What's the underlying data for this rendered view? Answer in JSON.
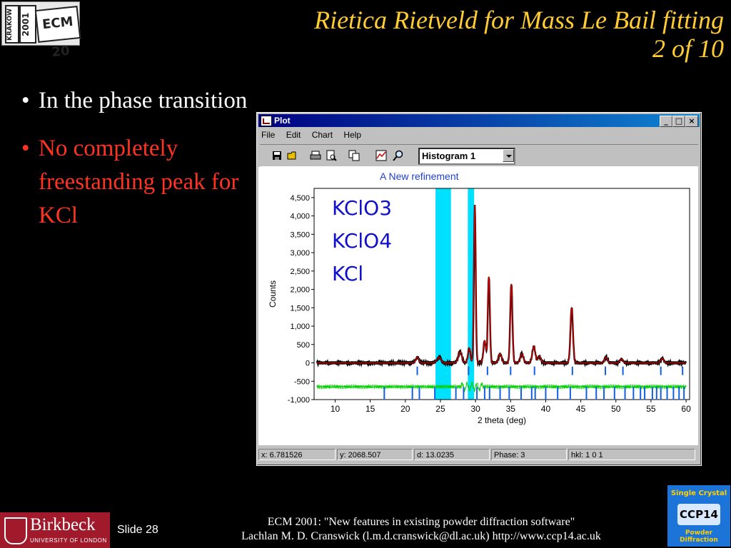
{
  "slide": {
    "title_line1": "Rietica Rietveld for Mass Le Bail fitting",
    "title_line2": "2 of 10",
    "bullet_symbol": "•",
    "bullets": [
      {
        "text": "In the phase transition",
        "color": "#ffffff"
      },
      {
        "text": "No completely freestanding peak for KCl",
        "color": "#ff3322"
      }
    ],
    "slide_number": "Slide 28",
    "credit_line1": "ECM 2001: \"New features in existing powder diffraction software\"",
    "credit_line2": "Lachlan M. D. Cranswick (l.m.d.cranswick@dl.ac.uk) http://www.ccp14.ac.uk",
    "title_color": "#ffcc33"
  },
  "logos": {
    "krakow_text": "KRAKÓW",
    "year_text": "2001",
    "ecm_text": "ECM 20",
    "birkbeck_name": "Birkbeck",
    "birkbeck_sub": "UNIVERSITY OF LONDON",
    "ccp14_top": "Single Crystal",
    "ccp14_mid": "CCP14",
    "ccp14_bottom": "Powder Diffraction"
  },
  "window": {
    "title": "Plot",
    "controls": {
      "minimize": "_",
      "maximize": "□",
      "close": "×"
    },
    "menu": [
      "File",
      "Edit",
      "Chart",
      "Help"
    ],
    "toolbar_icons": [
      "save-icon",
      "open-icon",
      "print-icon",
      "print-preview-icon",
      "copy-icon",
      "chart-options-icon",
      "zoom-icon"
    ],
    "histogram_select": "Histogram 1",
    "status": {
      "x": "x: 6.781526",
      "y": "y: 2068.507",
      "d": "d: 13.0235",
      "phase": "Phase: 3",
      "hkl": "hkl: 1 0 1"
    }
  },
  "chart_data": {
    "type": "line",
    "title": "A New refinement",
    "xlabel": "2 theta (deg)",
    "ylabel": "Counts",
    "xlim": [
      7,
      60.5
    ],
    "ylim": [
      -1000,
      4750
    ],
    "xticks": [
      10,
      15,
      20,
      25,
      30,
      35,
      40,
      45,
      50,
      55,
      60
    ],
    "yticks": [
      -1000,
      -500,
      0,
      500,
      1000,
      1500,
      2000,
      2500,
      3000,
      3500,
      4000,
      4500
    ],
    "ytick_labels": [
      "-1,000",
      "-500",
      "0",
      "500",
      "1,000",
      "1,500",
      "2,000",
      "2,500",
      "3,000",
      "3,500",
      "4,000",
      "4,500"
    ],
    "annotations": [
      "KClO3",
      "KClO4",
      "KCl"
    ],
    "excluded_regions": [
      [
        24.3,
        26.5
      ],
      [
        28.9,
        29.8
      ]
    ],
    "background": 0,
    "peaks": [
      {
        "x": 21.7,
        "h": 150,
        "w": 0.3
      },
      {
        "x": 24.8,
        "h": 150,
        "w": 0.4
      },
      {
        "x": 27.8,
        "h": 300,
        "w": 0.35
      },
      {
        "x": 29.1,
        "h": 400,
        "w": 0.25
      },
      {
        "x": 29.9,
        "h": 4300,
        "w": 0.18
      },
      {
        "x": 31.3,
        "h": 600,
        "w": 0.25
      },
      {
        "x": 31.9,
        "h": 2350,
        "w": 0.2
      },
      {
        "x": 33.5,
        "h": 250,
        "w": 0.3
      },
      {
        "x": 35.1,
        "h": 2150,
        "w": 0.22
      },
      {
        "x": 36.6,
        "h": 250,
        "w": 0.3
      },
      {
        "x": 38.3,
        "h": 450,
        "w": 0.3
      },
      {
        "x": 39.1,
        "h": 180,
        "w": 0.3
      },
      {
        "x": 43.7,
        "h": 1500,
        "w": 0.25
      },
      {
        "x": 48.6,
        "h": 150,
        "w": 0.3
      },
      {
        "x": 50.8,
        "h": 100,
        "w": 0.3
      },
      {
        "x": 56.6,
        "h": 120,
        "w": 0.3
      }
    ],
    "difference_offset": -650,
    "tick_row_upper_y": -100,
    "tick_row_lower_y": -850,
    "tick_marks_upper": [
      21.7,
      29.0,
      31.7,
      35.0,
      38.4,
      43.8,
      48.5,
      51.0,
      56.4,
      59.5
    ],
    "tick_marks_lower": [
      17.0,
      21.0,
      22.0,
      24.2,
      27.2,
      28.3,
      30.2,
      31.3,
      32.0,
      33.5,
      34.8,
      36.5,
      38.0,
      38.5,
      40.0,
      41.7,
      43.5,
      45.8,
      47.2,
      48.3,
      49.8,
      51.3,
      52.5,
      53.5,
      54.1,
      55.2,
      55.8,
      56.4,
      57.3,
      58.2,
      59.0,
      59.7
    ],
    "colors": {
      "calculated": "#d00000",
      "observed": "#000000",
      "difference": "#00d000",
      "excluded": "#00e0ff",
      "ticks": "#1060e0",
      "annotation": "#1010cc",
      "title": "#2040d0"
    }
  }
}
